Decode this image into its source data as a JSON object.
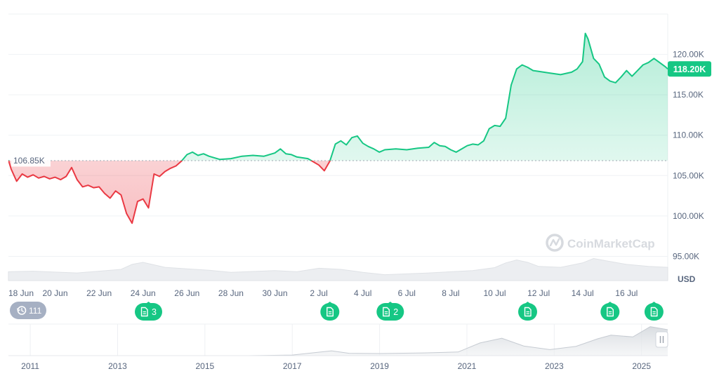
{
  "chart_data": {
    "type": "area",
    "unit_label": "USD",
    "ylim": [
      92000,
      125000
    ],
    "y_ticks": [
      {
        "value": 95000,
        "label": "95.00K"
      },
      {
        "value": 100000,
        "label": "100.00K"
      },
      {
        "value": 105000,
        "label": "105.00K"
      },
      {
        "value": 110000,
        "label": "110.00K"
      },
      {
        "value": 115000,
        "label": "115.00K"
      },
      {
        "value": 120000,
        "label": "120.00K"
      }
    ],
    "x_ticks": [
      "18 Jun",
      "20 Jun",
      "22 Jun",
      "24 Jun",
      "26 Jun",
      "28 Jun",
      "30 Jun",
      "2 Jul",
      "4 Jul",
      "6 Jul",
      "8 Jul",
      "10 Jul",
      "12 Jul",
      "14 Jul",
      "16 Jul"
    ],
    "x_range": [
      "2025-06-17T21:00",
      "2025-07-17T21:00"
    ],
    "baseline": {
      "value": 106850,
      "label": "106.85K"
    },
    "current": {
      "value": 118200,
      "label": "118.20K"
    },
    "up_color": "#16c784",
    "down_color": "#ea3943",
    "series": [
      {
        "x": [
          "2025-06-17T21:00",
          "2025-06-18T00:00",
          "2025-06-18T06:00",
          "2025-06-18T12:00",
          "2025-06-18T18:00",
          "2025-06-19T00:00",
          "2025-06-19T06:00",
          "2025-06-19T12:00",
          "2025-06-19T18:00",
          "2025-06-20T00:00",
          "2025-06-20T06:00",
          "2025-06-20T12:00",
          "2025-06-20T18:00",
          "2025-06-21T00:00",
          "2025-06-21T06:00",
          "2025-06-21T12:00",
          "2025-06-21T18:00",
          "2025-06-22T00:00",
          "2025-06-22T06:00",
          "2025-06-22T12:00",
          "2025-06-22T18:00",
          "2025-06-23T00:00",
          "2025-06-23T06:00",
          "2025-06-23T12:00",
          "2025-06-23T18:00",
          "2025-06-24T00:00",
          "2025-06-24T06:00",
          "2025-06-24T12:00",
          "2025-06-24T18:00",
          "2025-06-25T00:00",
          "2025-06-25T06:00",
          "2025-06-25T12:00",
          "2025-06-25T18:00",
          "2025-06-26T00:00",
          "2025-06-26T06:00",
          "2025-06-26T12:00",
          "2025-06-26T18:00",
          "2025-06-27T00:00",
          "2025-06-27T12:00",
          "2025-06-28T00:00",
          "2025-06-28T12:00",
          "2025-06-29T00:00",
          "2025-06-29T12:00",
          "2025-06-30T00:00",
          "2025-06-30T06:00",
          "2025-06-30T12:00",
          "2025-06-30T18:00",
          "2025-07-01T00:00",
          "2025-07-01T12:00",
          "2025-07-02T00:00",
          "2025-07-02T06:00",
          "2025-07-02T12:00",
          "2025-07-02T18:00",
          "2025-07-03T00:00",
          "2025-07-03T06:00",
          "2025-07-03T12:00",
          "2025-07-03T18:00",
          "2025-07-04T00:00",
          "2025-07-04T06:00",
          "2025-07-04T12:00",
          "2025-07-04T18:00",
          "2025-07-05T00:00",
          "2025-07-05T12:00",
          "2025-07-06T00:00",
          "2025-07-06T12:00",
          "2025-07-07T00:00",
          "2025-07-07T06:00",
          "2025-07-07T12:00",
          "2025-07-07T18:00",
          "2025-07-08T00:00",
          "2025-07-08T06:00",
          "2025-07-08T12:00",
          "2025-07-08T18:00",
          "2025-07-09T00:00",
          "2025-07-09T06:00",
          "2025-07-09T12:00",
          "2025-07-09T18:00",
          "2025-07-10T00:00",
          "2025-07-10T06:00",
          "2025-07-10T12:00",
          "2025-07-10T18:00",
          "2025-07-11T00:00",
          "2025-07-11T06:00",
          "2025-07-11T12:00",
          "2025-07-11T18:00",
          "2025-07-12T00:00",
          "2025-07-12T12:00",
          "2025-07-13T00:00",
          "2025-07-13T12:00",
          "2025-07-13T18:00",
          "2025-07-14T00:00",
          "2025-07-14T03:00",
          "2025-07-14T06:00",
          "2025-07-14T12:00",
          "2025-07-14T18:00",
          "2025-07-15T00:00",
          "2025-07-15T06:00",
          "2025-07-15T12:00",
          "2025-07-15T18:00",
          "2025-07-16T00:00",
          "2025-07-16T06:00",
          "2025-07-16T12:00",
          "2025-07-16T18:00",
          "2025-07-17T00:00",
          "2025-07-17T06:00",
          "2025-07-17T12:00",
          "2025-07-17T18:00",
          "2025-07-17T21:00"
        ],
        "values": [
          106900,
          105800,
          104300,
          105200,
          104800,
          105100,
          104700,
          104900,
          104600,
          104800,
          104500,
          104900,
          106000,
          104500,
          103600,
          103800,
          103500,
          103600,
          102800,
          102200,
          103100,
          102600,
          100300,
          99100,
          101800,
          102100,
          101000,
          105200,
          104900,
          105500,
          105900,
          106200,
          106800,
          107600,
          107900,
          107500,
          107700,
          107400,
          107000,
          107100,
          107400,
          107500,
          107400,
          107800,
          108300,
          107700,
          107600,
          107300,
          107100,
          106300,
          105600,
          106800,
          108900,
          109300,
          108800,
          109700,
          109900,
          109000,
          108600,
          108300,
          107900,
          108200,
          108300,
          108200,
          108400,
          108500,
          109100,
          108700,
          108600,
          108200,
          107900,
          108300,
          108700,
          108900,
          108800,
          109300,
          110800,
          111200,
          111100,
          112100,
          116200,
          118200,
          118700,
          118400,
          118000,
          117900,
          117700,
          117500,
          117800,
          118200,
          119100,
          122600,
          121900,
          119500,
          118800,
          117200,
          116700,
          116500,
          117200,
          118000,
          117300,
          118000,
          118700,
          119000,
          119500,
          119000,
          118500,
          118200
        ]
      }
    ],
    "volume_ylim": [
      0,
      100
    ],
    "volume": {
      "x": [
        "2025-06-17T21:00",
        "2025-06-19T00:00",
        "2025-06-21T00:00",
        "2025-06-23T00:00",
        "2025-06-23T12:00",
        "2025-06-24T00:00",
        "2025-06-25T00:00",
        "2025-06-26T00:00",
        "2025-06-27T00:00",
        "2025-06-28T00:00",
        "2025-06-30T00:00",
        "2025-07-01T00:00",
        "2025-07-02T00:00",
        "2025-07-03T00:00",
        "2025-07-04T00:00",
        "2025-07-05T00:00",
        "2025-07-07T00:00",
        "2025-07-08T00:00",
        "2025-07-09T00:00",
        "2025-07-10T00:00",
        "2025-07-10T12:00",
        "2025-07-11T00:00",
        "2025-07-11T12:00",
        "2025-07-12T00:00",
        "2025-07-13T00:00",
        "2025-07-14T00:00",
        "2025-07-14T12:00",
        "2025-07-15T00:00",
        "2025-07-16T00:00",
        "2025-07-17T00:00",
        "2025-07-17T21:00"
      ],
      "values": [
        30,
        32,
        26,
        38,
        55,
        62,
        45,
        40,
        35,
        28,
        34,
        30,
        42,
        38,
        28,
        20,
        26,
        30,
        34,
        44,
        60,
        70,
        62,
        48,
        45,
        60,
        75,
        68,
        55,
        48,
        45
      ]
    },
    "events": [
      {
        "x": "2025-06-24T06:00",
        "label": "3"
      },
      {
        "x": "2025-07-02T12:00",
        "label": ""
      },
      {
        "x": "2025-07-05T06:00",
        "label": "2"
      },
      {
        "x": "2025-07-11T12:00",
        "label": ""
      },
      {
        "x": "2025-07-15T06:00",
        "label": ""
      },
      {
        "x": "2025-07-17T06:00",
        "label": ""
      }
    ],
    "history_badge": "111",
    "navigator": {
      "x_range": [
        2010.5,
        2025.6
      ],
      "x_ticks": [
        "2011",
        "2013",
        "2015",
        "2017",
        "2019",
        "2021",
        "2023",
        "2025"
      ],
      "x": [
        2010.5,
        2014.0,
        2016.0,
        2017.0,
        2017.9,
        2018.3,
        2019.0,
        2020.0,
        2020.8,
        2021.3,
        2021.8,
        2022.3,
        2022.9,
        2023.5,
        2024.0,
        2024.3,
        2024.8,
        2025.2,
        2025.6
      ],
      "values": [
        0,
        0,
        0,
        2,
        16,
        8,
        7,
        9,
        12,
        42,
        58,
        32,
        20,
        31,
        56,
        68,
        62,
        96,
        86
      ]
    }
  },
  "watermark": "CoinMarketCap",
  "icons": {
    "watermark_logo": "coinmarketcap-logo-icon",
    "event_icon": "document-icon",
    "history_icon": "history-clock-icon",
    "handle_icon": "pause-handle-icon"
  }
}
